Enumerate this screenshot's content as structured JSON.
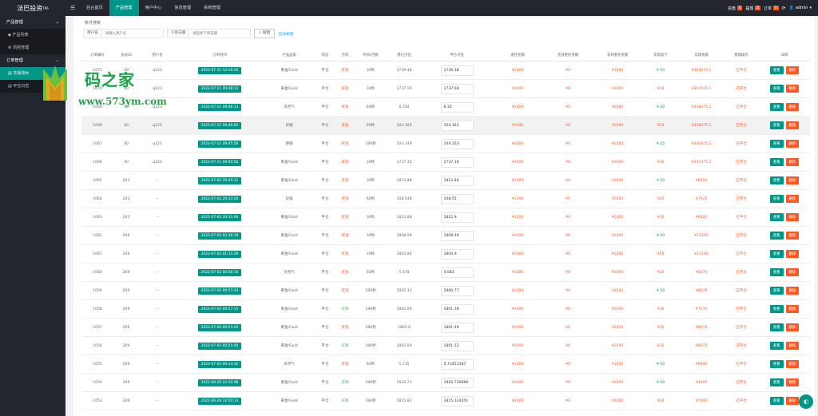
{
  "app": {
    "title": "法巴投资",
    "version": "TP6"
  },
  "topnav": {
    "items": [
      {
        "label": "后台首页",
        "active": false
      },
      {
        "label": "产品管理",
        "active": true
      },
      {
        "label": "用户中心",
        "active": false
      },
      {
        "label": "信息管理",
        "active": false
      },
      {
        "label": "系统管理",
        "active": false
      }
    ],
    "right": {
      "recharge_label": "充值",
      "recharge_count": "0",
      "withdraw_label": "提现",
      "withdraw_count": "0",
      "order_label": "订单",
      "order_count": "0",
      "user_label": "admin"
    }
  },
  "sidebar": {
    "groups": [
      {
        "label": "产品管理",
        "items": [
          "产品列表",
          "风控管理"
        ]
      },
      {
        "label": "订单管理",
        "items": [
          "交易流水",
          "平仓日志"
        ]
      }
    ]
  },
  "watermark": {
    "title": "码之家",
    "url": "www.573ym.com"
  },
  "search": {
    "legend": "条件搜索",
    "user_label": "用户名",
    "user_placeholder": "请输入用户名",
    "date_label": "下单日期",
    "date_placeholder": "请选择下单日期",
    "search_btn": "搜索",
    "refresh_link": "自动刷新"
  },
  "table": {
    "headers": [
      "订单编号",
      "会员ID",
      "用户名",
      "订单时间",
      "产品品类",
      "状态",
      "方向",
      "时间/点数",
      "建仓点位",
      "平仓点位",
      "委托金额",
      "无效委托金额",
      "有效委托金额",
      "实际盈亏",
      "实际余额",
      "管理操作",
      "详情"
    ],
    "view_label": "查看",
    "delete_label": "删除",
    "rows": [
      {
        "id": "1071",
        "uid": "40",
        "user": "q123",
        "time": "2022-07-11 12:16:35",
        "product": "黄金/Gold",
        "status": "平仓",
        "dir": "买涨",
        "dir_color": "red",
        "period": "30秒",
        "open": "1739.48",
        "close": "1739.38",
        "amount": "¥1000",
        "invalid": "¥0",
        "valid": "¥1000",
        "pnl": "¥-50",
        "pnl_color": "green",
        "balance": "¥353570.1",
        "op": "已平仓"
      },
      {
        "id": "1070",
        "uid": "40",
        "user": "q123",
        "time": "2022-07-11 09:48:13",
        "product": "黄金/Gold",
        "status": "平仓",
        "dir": "买涨",
        "dir_color": "red",
        "period": "30秒",
        "open": "1737.59",
        "close": "1737.68",
        "amount": "¥1000",
        "invalid": "¥0",
        "valid": "¥1000",
        "pnl": "¥30",
        "pnl_color": "red",
        "balance": "¥341535.1",
        "op": "已平仓"
      },
      {
        "id": "1069",
        "uid": "40",
        "user": "q123",
        "time": "2022-07-11 09:46:13",
        "product": "天然气",
        "status": "平仓",
        "dir": "买涨",
        "dir_color": "red",
        "period": "60秒",
        "open": "6.354",
        "close": "6.35",
        "amount": "¥1000",
        "invalid": "¥0",
        "valid": "¥1000",
        "pnl": "¥-20",
        "pnl_color": "green",
        "balance": "¥338475.1",
        "op": "已平仓"
      },
      {
        "id": "1068",
        "uid": "40",
        "user": "q123",
        "time": "2022-07-11 09:46:05",
        "product": "日银",
        "status": "平仓",
        "dir": "买涨",
        "dir_color": "red",
        "period": "60秒",
        "open": "104.165",
        "close": "104.162",
        "amount": "¥1000",
        "invalid": "¥0",
        "valid": "¥1000",
        "pnl": "¥20",
        "pnl_color": "red",
        "balance": "¥339475.1",
        "op": "已平仓"
      },
      {
        "id": "1067",
        "uid": "40",
        "user": "q123",
        "time": "2022-07-11 09:45:58",
        "product": "德银",
        "status": "平仓",
        "dir": "买涨",
        "dir_color": "red",
        "period": "180秒",
        "open": "104.149",
        "close": "104.103",
        "amount": "¥1000",
        "invalid": "¥0",
        "valid": "¥1000",
        "pnl": "¥-25",
        "pnl_color": "green",
        "balance": "¥340475.1",
        "op": "已平仓"
      },
      {
        "id": "1066",
        "uid": "40",
        "user": "q123",
        "time": "2022-07-11 09:45:50",
        "product": "黄金/Gold",
        "status": "平仓",
        "dir": "买涨",
        "dir_color": "red",
        "period": "30秒",
        "open": "1737.32",
        "close": "1737.30",
        "amount": "¥1000",
        "invalid": "¥0",
        "valid": "¥1000",
        "pnl": "¥30",
        "pnl_color": "red",
        "balance": "¥341475.1",
        "op": "已平仓"
      },
      {
        "id": "1065",
        "uid": "203",
        "user": "--",
        "time": "2022-07-02 20:45:11",
        "product": "黄金/Gold",
        "status": "平仓",
        "dir": "买涨",
        "dir_color": "red",
        "period": "30秒",
        "open": "1812.88",
        "close": "1812.84",
        "amount": "¥1000",
        "invalid": "¥0",
        "valid": "¥1000",
        "pnl": "¥-50",
        "pnl_color": "green",
        "balance": "¥6920",
        "op": "已平仓"
      },
      {
        "id": "1064",
        "uid": "203",
        "user": "--",
        "time": "2022-07-02 20:33:26",
        "product": "日银",
        "status": "平仓",
        "dir": "买涨",
        "dir_color": "red",
        "period": "60秒",
        "open": "108.548",
        "close": "108.55",
        "amount": "¥1000",
        "invalid": "¥0",
        "valid": "¥1000",
        "pnl": "¥20",
        "pnl_color": "red",
        "balance": "¥7920",
        "op": "已平仓"
      },
      {
        "id": "1063",
        "uid": "203",
        "user": "--",
        "time": "2022-07-02 20:31:04",
        "product": "黄金/Gold",
        "status": "平仓",
        "dir": "买涨",
        "dir_color": "red",
        "period": "30秒",
        "open": "1812.88",
        "close": "1812.9",
        "amount": "¥1000",
        "invalid": "¥0",
        "valid": "¥1000",
        "pnl": "¥30",
        "pnl_color": "red",
        "balance": "¥6920",
        "op": "已平仓"
      },
      {
        "id": "1062",
        "uid": "209",
        "user": "--",
        "time": "2022-07-02 02:36:39",
        "product": "黄金/Gold",
        "status": "平仓",
        "dir": "买涨",
        "dir_color": "red",
        "period": "30秒",
        "open": "1808.09",
        "close": "1808.46",
        "amount": "¥1000",
        "invalid": "¥0",
        "valid": "¥1000",
        "pnl": "¥-50",
        "pnl_color": "green",
        "balance": "¥11245",
        "op": "已平仓"
      },
      {
        "id": "1061",
        "uid": "209",
        "user": "--",
        "time": "2022-07-02 01:35:29",
        "product": "黄金/Gold",
        "status": "平仓",
        "dir": "买涨",
        "dir_color": "red",
        "period": "30秒",
        "open": "1803.86",
        "close": "1803.9",
        "amount": "¥1000",
        "invalid": "¥0",
        "valid": "¥1000",
        "pnl": "¥55",
        "pnl_color": "red",
        "balance": "¥11190",
        "op": "已平仓"
      },
      {
        "id": "1060",
        "uid": "209",
        "user": "--",
        "time": "2022-07-02 00:58:16",
        "product": "天然气",
        "status": "平仓",
        "dir": "买涨",
        "dir_color": "red",
        "period": "60秒",
        "open": "5.678",
        "close": "5.683",
        "amount": "¥1000",
        "invalid": "¥0",
        "valid": "¥1000",
        "pnl": "¥20",
        "pnl_color": "red",
        "balance": "¥5070",
        "op": "已平仓"
      },
      {
        "id": "1059",
        "uid": "209",
        "user": "--",
        "time": "2022-07-02 00:57:43",
        "product": "黄金/Gold",
        "status": "平仓",
        "dir": "买涨",
        "dir_color": "red",
        "period": "180秒",
        "open": "1802.33",
        "close": "1800.77",
        "amount": "¥1000",
        "invalid": "¥0",
        "valid": "¥1000",
        "pnl": "¥-50",
        "pnl_color": "green",
        "balance": "¥6070",
        "op": "已平仓"
      },
      {
        "id": "1058",
        "uid": "209",
        "user": "--",
        "time": "2022-07-02 00:57:15",
        "product": "黄金/Gold",
        "status": "平仓",
        "dir": "买跌",
        "dir_color": "green",
        "period": "180秒",
        "open": "1802.06",
        "close": "1801.38",
        "amount": "¥1000",
        "invalid": "¥0",
        "valid": "¥1000",
        "pnl": "¥30",
        "pnl_color": "red",
        "balance": "¥7070",
        "op": "已平仓"
      },
      {
        "id": "1057",
        "uid": "209",
        "user": "--",
        "time": "2022-07-02 00:55:44",
        "product": "黄金/Gold",
        "status": "平仓",
        "dir": "买涨",
        "dir_color": "red",
        "period": "180秒",
        "open": "1802.6",
        "close": "1801.49",
        "amount": "¥1000",
        "invalid": "¥0",
        "valid": "¥1000",
        "pnl": "¥30",
        "pnl_color": "red",
        "balance": "¥8070",
        "op": "已平仓"
      },
      {
        "id": "1056",
        "uid": "209",
        "user": "--",
        "time": "2022-07-02 00:55:40",
        "product": "黄金/Gold",
        "status": "平仓",
        "dir": "买跌",
        "dir_color": "green",
        "period": "180秒",
        "open": "1802.69",
        "close": "1801.52",
        "amount": "¥1000",
        "invalid": "¥0",
        "valid": "¥1000",
        "pnl": "¥30",
        "pnl_color": "red",
        "balance": "¥9070",
        "op": "已平仓"
      },
      {
        "id": "1055",
        "uid": "209",
        "user": "--",
        "time": "2022-07-02 00:33:32",
        "product": "天然气",
        "status": "平仓",
        "dir": "买涨",
        "dir_color": "red",
        "period": "60秒",
        "open": "5.735",
        "close": "5.73451387",
        "amount": "¥1000",
        "invalid": "¥0",
        "valid": "¥1000",
        "pnl": "¥-20",
        "pnl_color": "green",
        "balance": "¥9090",
        "op": "已平仓"
      },
      {
        "id": "1054",
        "uid": "209",
        "user": "--",
        "time": "2022-06-29 22:50:48",
        "product": "黄金/Gold",
        "status": "平仓",
        "dir": "买跌",
        "dir_color": "green",
        "period": "180秒",
        "open": "1816.73",
        "close": "1816.730668",
        "amount": "¥1000",
        "invalid": "¥0",
        "valid": "¥1000",
        "pnl": "¥-50",
        "pnl_color": "green",
        "balance": "¥4000",
        "op": "已平仓"
      },
      {
        "id": "1053",
        "uid": "209",
        "user": "--",
        "time": "2022-06-29 22:50:13",
        "product": "黄金/Gold",
        "status": "平仓",
        "dir": "买跌",
        "dir_color": "green",
        "period": "180秒",
        "open": "1815.82",
        "close": "1815.324201",
        "amount": "¥1000",
        "invalid": "¥0",
        "valid": "¥1000",
        "pnl": "¥30",
        "pnl_color": "red",
        "balance": "¥7000",
        "op": "已平仓"
      }
    ]
  }
}
